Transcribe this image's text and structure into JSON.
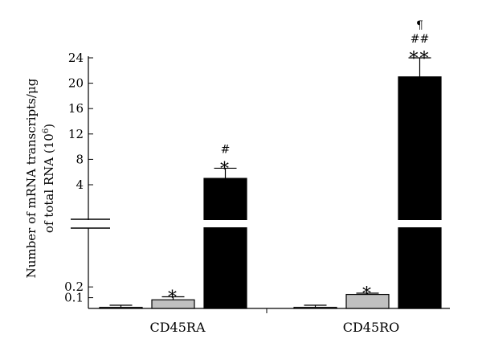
{
  "chart_data": {
    "type": "bar",
    "ylabel_line1": "Number of mRNA transcripts/μg",
    "ylabel_line2": "of total RNA (10",
    "ylabel_exp": "6",
    "ylabel_close": ")",
    "axis_break": true,
    "y_lower_ticks": [
      "0.1",
      "0.2"
    ],
    "y_upper_ticks": [
      "4",
      "8",
      "12",
      "16",
      "20",
      "24"
    ],
    "categories": [
      "CD45RA",
      "CD45RO"
    ],
    "series": [
      {
        "fill": "#ffffff",
        "values": [
          0.01,
          0.01
        ],
        "errors": [
          0.02,
          0.02
        ]
      },
      {
        "fill": "#c0c0c0",
        "values": [
          0.08,
          0.13
        ],
        "errors": [
          0.028,
          0.012
        ]
      },
      {
        "fill": "#000000",
        "values": [
          5,
          21
        ],
        "errors": [
          1.6,
          3.0
        ]
      }
    ],
    "annotations": [
      {
        "category": 0,
        "series": 1,
        "lines": [
          "*"
        ]
      },
      {
        "category": 0,
        "series": 2,
        "lines": [
          "#",
          "*"
        ]
      },
      {
        "category": 1,
        "series": 1,
        "lines": [
          "*"
        ]
      },
      {
        "category": 1,
        "series": 2,
        "lines": [
          "¶",
          "##",
          "**"
        ]
      }
    ]
  }
}
